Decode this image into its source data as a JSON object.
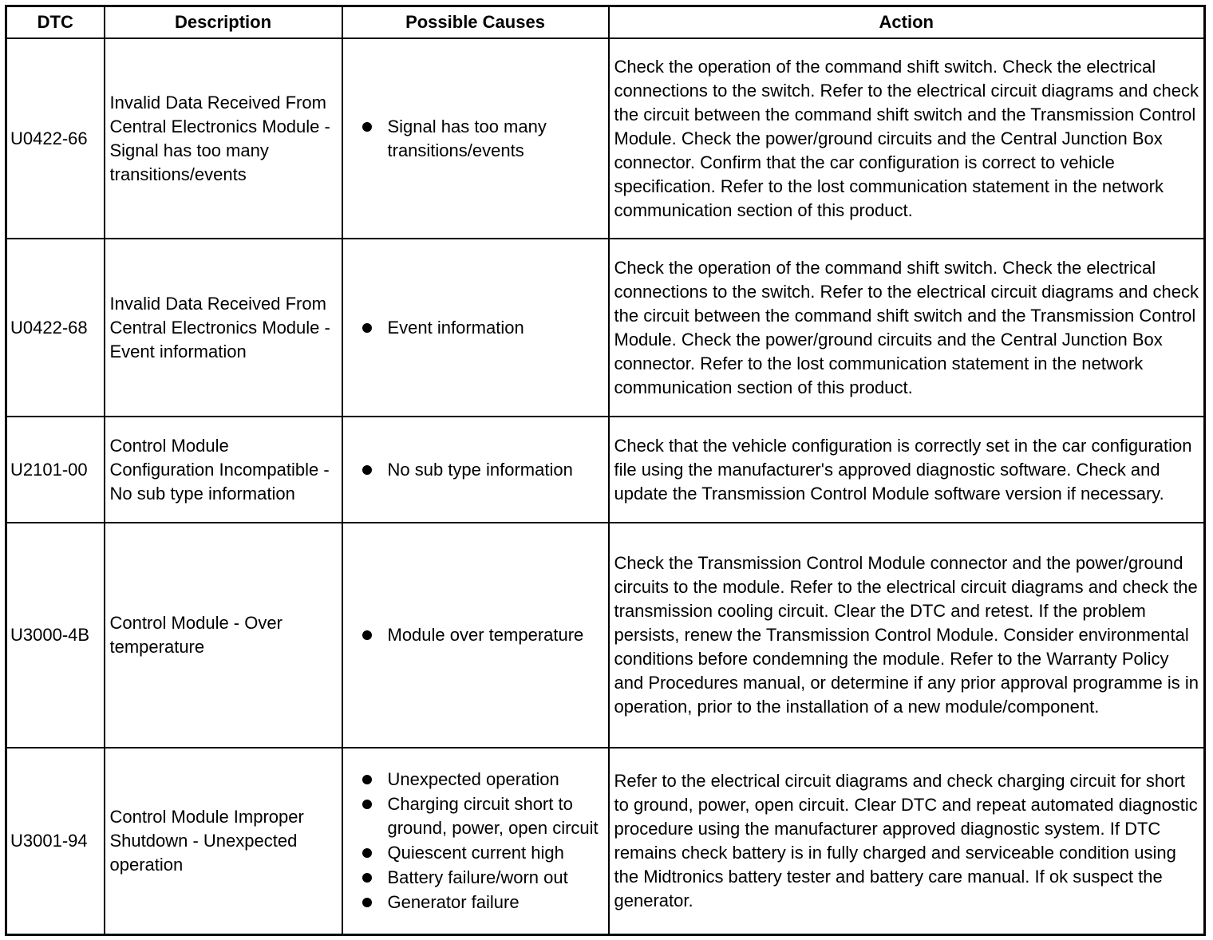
{
  "headers": [
    "DTC",
    "Description",
    "Possible Causes",
    "Action"
  ],
  "rows": [
    {
      "dtc": "U0422-66",
      "description": "Invalid Data Received From Central Electronics Module - Signal has too many transitions/events",
      "causes": [
        "Signal has too many transitions/events"
      ],
      "action": "Check the operation of the command shift switch. Check the electrical connections to the switch. Refer to the electrical circuit diagrams and check the circuit between the command shift switch and the Transmission Control Module. Check the power/ground circuits and the Central Junction Box connector. Confirm that the car configuration is correct to vehicle specification. Refer to the lost communication statement in the network communication section of this product."
    },
    {
      "dtc": "U0422-68",
      "description": "Invalid Data Received From Central Electronics Module - Event information",
      "causes": [
        "Event information"
      ],
      "action": "Check the operation of the command shift switch. Check the electrical connections to the switch. Refer to the electrical circuit diagrams and check the circuit between the command shift switch and the Transmission Control Module. Check the power/ground circuits and the Central Junction Box connector. Refer to the lost communication statement in the network communication section of this product."
    },
    {
      "dtc": "U2101-00",
      "description": "Control Module Configuration Incompatible - No sub type information",
      "causes": [
        "No sub type information"
      ],
      "action": "Check that the vehicle configuration is correctly set in the car configuration file using the manufacturer's approved diagnostic software. Check and update the Transmission Control Module software version if necessary."
    },
    {
      "dtc": "U3000-4B",
      "description": "Control Module - Over temperature",
      "causes": [
        "Module over temperature"
      ],
      "action": "Check the Transmission Control Module connector and the power/ground circuits to the module. Refer to the electrical circuit diagrams and check the transmission cooling circuit. Clear the DTC and retest. If the problem persists, renew the Transmission Control Module. Consider environmental conditions before condemning the module. Refer to the Warranty Policy and Procedures manual, or determine if any prior approval programme is in operation, prior to the installation of a new module/component."
    },
    {
      "dtc": "U3001-94",
      "description": "Control Module Improper Shutdown - Unexpected operation",
      "causes": [
        "Unexpected operation",
        "Charging circuit short to ground, power, open circuit",
        "Quiescent current high",
        "Battery failure/worn out",
        "Generator failure"
      ],
      "action": "Refer to the electrical circuit diagrams and check charging circuit for short to ground, power, open circuit. Clear DTC and repeat automated diagnostic procedure using the manufacturer approved diagnostic system. If DTC remains check battery is in fully charged and serviceable condition using the Midtronics battery tester and battery care manual. If ok suspect the generator."
    }
  ]
}
